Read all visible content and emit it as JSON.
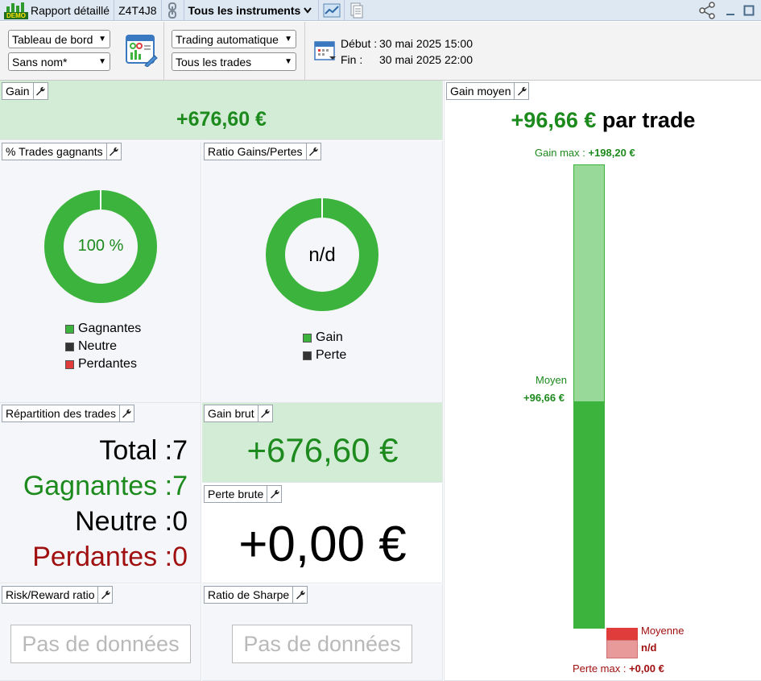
{
  "titlebar": {
    "logo_text": "DEMO",
    "report_label": "Rapport détaillé",
    "account": "Z4T4J8",
    "instruments": "Tous les instruments"
  },
  "toolbar": {
    "layout_select": "Tableau de bord",
    "name_select": "Sans nom*",
    "trading_select": "Trading automatique",
    "trades_select": "Tous les trades",
    "start_label": "Début :",
    "start_value": "30 mai 2025 15:00",
    "end_label": "Fin :",
    "end_value": "30 mai 2025 22:00"
  },
  "gain": {
    "title": "Gain",
    "value": "+676,60 €"
  },
  "win_rate": {
    "title": "% Trades gagnants",
    "center": "100 %",
    "fraction": 1.0,
    "legend": [
      "Gagnantes",
      "Neutre",
      "Perdantes"
    ]
  },
  "gain_loss_ratio": {
    "title": "Ratio Gains/Pertes",
    "center": "n/d",
    "legend": [
      "Gain",
      "Perte"
    ]
  },
  "distribution": {
    "title": "Répartition des trades",
    "total_label": "Total :",
    "total_value": "7",
    "win_label": "Gagnantes :",
    "win_value": "7",
    "neutral_label": "Neutre :",
    "neutral_value": "0",
    "loss_label": "Perdantes :",
    "loss_value": "0"
  },
  "gross_gain": {
    "title": "Gain brut",
    "value": "+676,60 €"
  },
  "gross_loss": {
    "title": "Perte brute",
    "value": "+0,00 €"
  },
  "risk_reward": {
    "title": "Risk/Reward ratio",
    "nodata": "Pas de données"
  },
  "sharpe": {
    "title": "Ratio de Sharpe",
    "nodata": "Pas de données"
  },
  "avg_gain": {
    "title": "Gain moyen",
    "value": "+96,66 €",
    "suffix": "par trade",
    "max_label": "Gain max :",
    "max_value": "+198,20 €",
    "mean_label": "Moyen",
    "mean_value": "+96,66 €",
    "loss_mean_label": "Moyenne",
    "loss_mean_value": "n/d",
    "loss_max_label": "Perte max :",
    "loss_max_value": "+0,00 €",
    "max_gain_num": 198.2,
    "mean_gain_num": 96.66
  },
  "colors": {
    "green": "#3cb33c",
    "light_green": "#98d898",
    "dark_green": "#1d8a1d",
    "red": "#e03c3c",
    "light_red": "#e89a9a",
    "dark_red": "#a01010",
    "neutral": "#333333"
  }
}
